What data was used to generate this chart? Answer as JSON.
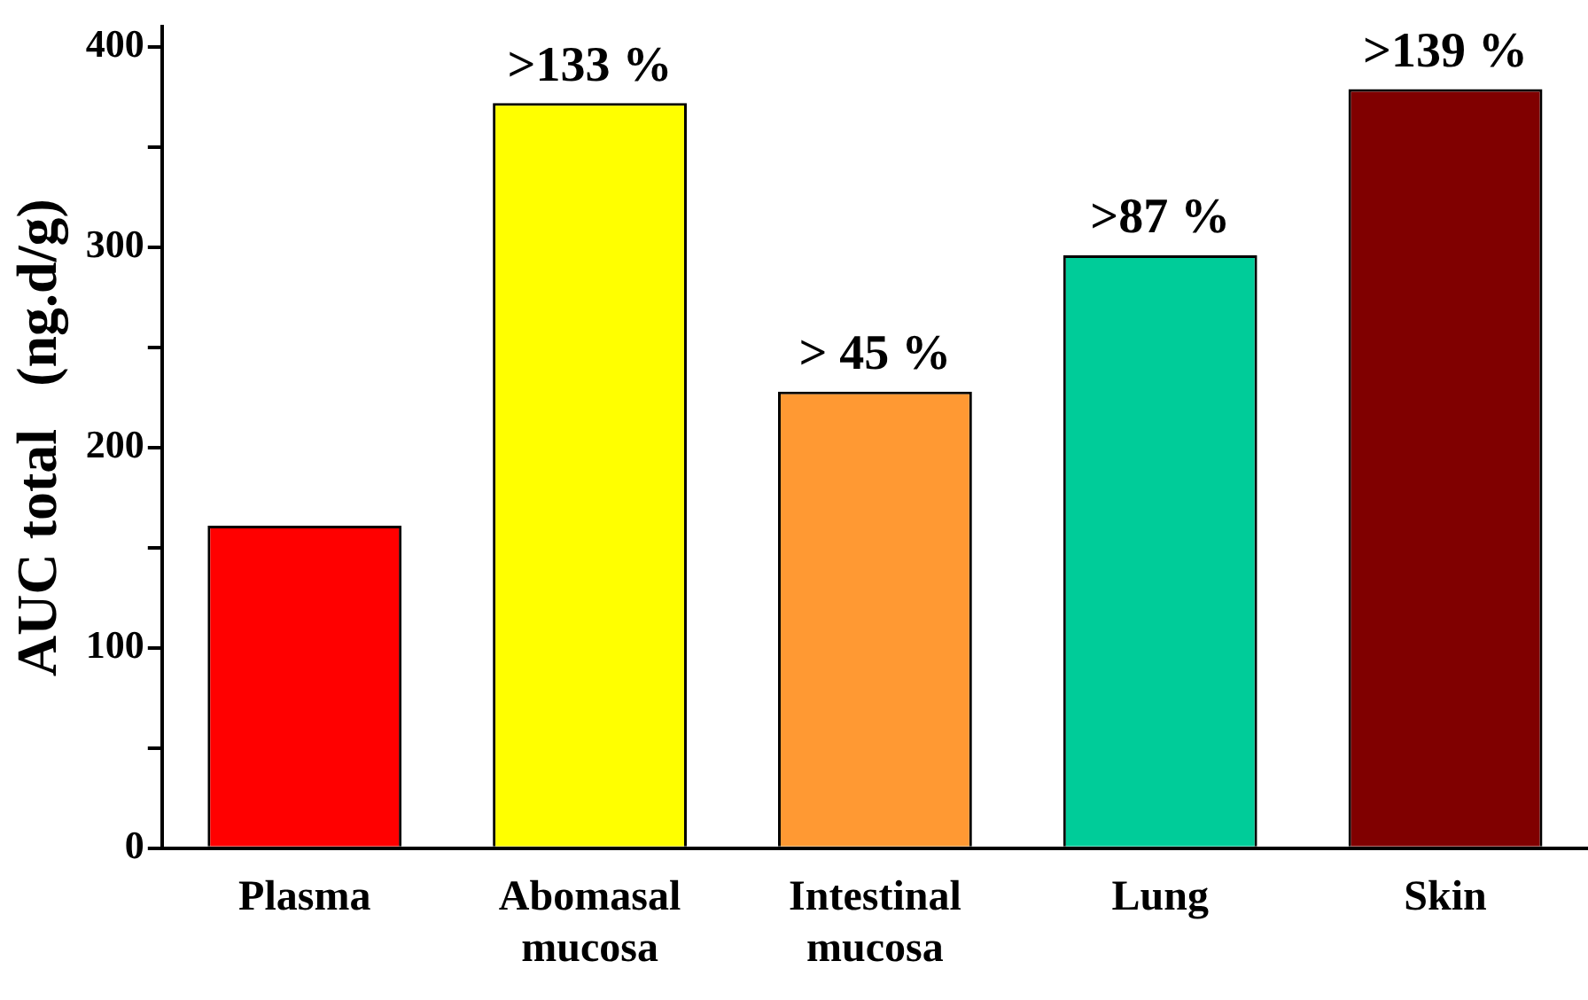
{
  "chart_data": {
    "type": "bar",
    "ylabel": "AUC total   (ng.d/g)",
    "categories": [
      "Plasma",
      "Abomasal mucosa",
      "Intestinal mucosa",
      "Lung",
      "Skin"
    ],
    "values": [
      161,
      372,
      228,
      296,
      379
    ],
    "colors": [
      "#ff0000",
      "#ffff00",
      "#ff9933",
      "#00cc99",
      "#800000"
    ],
    "value_labels": [
      null,
      ">133 %",
      "> 45 %",
      ">87 %",
      ">139 %"
    ],
    "ylim": [
      0,
      410
    ],
    "yticks": [
      0,
      {
        "value": 50,
        "label": null
      },
      100,
      {
        "value": 150,
        "label": null
      },
      200,
      {
        "value": 250,
        "label": null
      },
      300,
      {
        "value": 350,
        "label": null
      },
      400
    ],
    "grid": false,
    "legend": false
  }
}
